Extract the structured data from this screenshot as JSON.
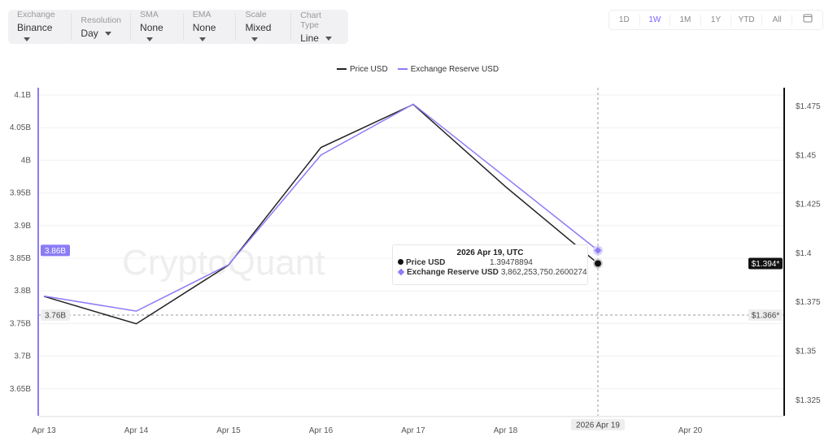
{
  "toolbar": [
    {
      "label": "Exchange",
      "value": "Binance"
    },
    {
      "label": "Resolution",
      "value": "Day"
    },
    {
      "label": "SMA",
      "value": "None"
    },
    {
      "label": "EMA",
      "value": "None"
    },
    {
      "label": "Scale",
      "value": "Mixed"
    },
    {
      "label": "Chart Type",
      "value": "Line"
    }
  ],
  "ranges": {
    "items": [
      "1D",
      "1W",
      "1M",
      "1Y",
      "YTD",
      "All"
    ],
    "active": "1W",
    "calendar_icon": "calendar-icon"
  },
  "watermark": "CryptoQuant",
  "colors": {
    "price": "#222222",
    "reserve": "#8b7cf6"
  },
  "tooltip": {
    "title": "2026 Apr 19, UTC",
    "rows": [
      {
        "name": "Price USD",
        "value": "1.39478894"
      },
      {
        "name": "Exchange Reserve USD",
        "value": "3,862,253,750.2600274"
      }
    ]
  },
  "crosshair": {
    "x_label": "2026 Apr 19",
    "left_label": "3.76B",
    "right_label": "$1.366*",
    "left_current": "3.86B",
    "right_current": "$1.394*"
  },
  "chart_data": {
    "type": "line",
    "x": [
      "Apr 13",
      "Apr 14",
      "Apr 15",
      "Apr 16",
      "Apr 17",
      "Apr 18",
      "Apr 19"
    ],
    "x_ticks": [
      "Apr 13",
      "Apr 14",
      "Apr 15",
      "Apr 16",
      "Apr 17",
      "Apr 18",
      "Apr 19",
      "Apr 20"
    ],
    "legend_position": "top-center",
    "series": [
      {
        "name": "Price USD",
        "axis": "right",
        "values": [
          1.378,
          1.364,
          1.394,
          1.454,
          1.476,
          1.434,
          1.39478894
        ]
      },
      {
        "name": "Exchange Reserve USD",
        "axis": "left",
        "values": [
          3.792,
          3.769,
          3.84,
          4.008,
          4.086,
          3.974,
          3.862
        ]
      }
    ],
    "left_axis": {
      "ticks": [
        "4.1B",
        "4.05B",
        "4B",
        "3.95B",
        "3.9B",
        "3.85B",
        "3.8B",
        "3.75B",
        "3.7B",
        "3.65B"
      ],
      "ylim": [
        3.6,
        4.1
      ],
      "unit": "B"
    },
    "right_axis": {
      "ticks": [
        "$1.475",
        "$1.45",
        "$1.425",
        "$1.4",
        "$1.375",
        "$1.35",
        "$1.325"
      ],
      "ylim": [
        1.31,
        1.48
      ]
    },
    "grid": true
  }
}
